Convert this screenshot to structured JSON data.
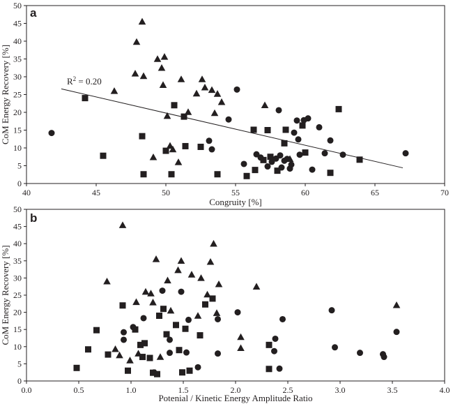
{
  "chart_data": [
    {
      "type": "scatter",
      "panel_label": "a",
      "xlabel": "Congruity [%]",
      "ylabel": "CoM Energy Recovery [%]",
      "xlim": [
        40,
        70
      ],
      "ylim": [
        0,
        50
      ],
      "x_ticks": [
        "40",
        "45",
        "50",
        "55",
        "60",
        "65",
        "70"
      ],
      "y_ticks": [
        "0",
        "5",
        "10",
        "15",
        "20",
        "25",
        "30",
        "35",
        "40",
        "45",
        "50"
      ],
      "grid": false,
      "annotation": {
        "text": "R",
        "sup": "2",
        "rest": " = 0.20"
      },
      "trendline": {
        "x": [
          42.5,
          67.0
        ],
        "y": [
          26.6,
          4.4
        ]
      },
      "series": [
        {
          "marker": "circle",
          "x": [
            41.8,
            53.1,
            53.3,
            54.5,
            55.1,
            55.6,
            56.5,
            56.8,
            57.3,
            57.6,
            57.9,
            58.1,
            58.2,
            58.3,
            58.5,
            58.7,
            58.9,
            59.0,
            59.2,
            59.4,
            59.5,
            59.6,
            59.9,
            60.2,
            60.5,
            61.0,
            61.4,
            61.8,
            62.7,
            67.2
          ],
          "y": [
            14.2,
            12.0,
            9.6,
            18.0,
            26.4,
            5.5,
            8.2,
            7.3,
            4.8,
            6.1,
            7.0,
            20.6,
            7.9,
            4.5,
            6.4,
            6.9,
            4.2,
            5.3,
            14.3,
            17.7,
            12.4,
            8.1,
            17.8,
            18.3,
            3.9,
            15.8,
            8.5,
            12.1,
            8.1,
            8.5
          ]
        },
        {
          "marker": "square",
          "x": [
            44.2,
            45.5,
            48.3,
            48.4,
            50.0,
            50.4,
            50.6,
            51.3,
            51.4,
            52.5,
            53.7,
            55.8,
            56.3,
            56.4,
            57.0,
            57.3,
            57.5,
            58.0,
            58.5,
            58.6,
            59.8,
            60.0,
            61.8,
            62.4,
            63.9
          ],
          "y": [
            24.0,
            7.8,
            13.3,
            2.6,
            9.2,
            2.6,
            22.0,
            18.8,
            10.5,
            10.3,
            2.6,
            2.1,
            15.1,
            3.8,
            6.6,
            15.0,
            7.5,
            3.6,
            11.3,
            15.1,
            16.3,
            8.7,
            3.0,
            20.9,
            6.7
          ]
        },
        {
          "marker": "triangle",
          "x": [
            46.3,
            47.8,
            47.9,
            48.3,
            48.4,
            49.1,
            49.4,
            49.7,
            49.8,
            49.9,
            50.1,
            50.3,
            50.5,
            50.9,
            51.1,
            51.6,
            52.2,
            52.6,
            52.8,
            53.3,
            53.5,
            53.7,
            54.0,
            57.1,
            58.9
          ],
          "y": [
            26.0,
            30.9,
            39.8,
            45.5,
            30.2,
            7.4,
            35.0,
            32.5,
            27.7,
            35.6,
            19.0,
            10.6,
            9.6,
            6.0,
            29.3,
            20.1,
            25.3,
            29.3,
            27.0,
            26.3,
            19.8,
            25.2,
            22.9,
            22.0,
            6.9
          ]
        }
      ]
    },
    {
      "type": "scatter",
      "panel_label": "b",
      "xlabel": "Potenial / Kinetic Energy Amplitude Ratio",
      "ylabel": "CoM Energy Recovery [%]",
      "xlim": [
        0,
        4
      ],
      "ylim": [
        0,
        50
      ],
      "x_ticks": [
        "0.0",
        "0.5",
        "1.0",
        "1.5",
        "2.0",
        "2.5",
        "3.0",
        "3.5",
        "4.0"
      ],
      "y_ticks": [
        "0",
        "5",
        "10",
        "15",
        "20",
        "25",
        "30",
        "35",
        "40",
        "45",
        "50"
      ],
      "grid": false,
      "series": [
        {
          "marker": "circle",
          "x": [
            0.93,
            0.93,
            1.02,
            1.12,
            1.22,
            1.3,
            1.37,
            1.37,
            1.48,
            1.53,
            1.55,
            1.64,
            1.83,
            1.83,
            2.02,
            2.37,
            2.38,
            2.42,
            2.45,
            2.92,
            2.95,
            3.19,
            3.41,
            3.42,
            3.54
          ],
          "y": [
            14.2,
            12.0,
            15.7,
            18.3,
            2.5,
            26.3,
            12.0,
            8.2,
            26.0,
            8.3,
            17.8,
            4.0,
            18.0,
            8.0,
            20.0,
            8.7,
            12.3,
            3.6,
            18.0,
            20.6,
            9.8,
            8.2,
            7.8,
            7.0,
            14.3
          ]
        },
        {
          "marker": "square",
          "x": [
            0.48,
            0.59,
            0.67,
            0.78,
            0.92,
            0.97,
            1.04,
            1.09,
            1.11,
            1.13,
            1.18,
            1.21,
            1.25,
            1.27,
            1.31,
            1.34,
            1.43,
            1.46,
            1.49,
            1.52,
            1.56,
            1.66,
            1.71,
            1.78,
            2.32,
            2.32
          ],
          "y": [
            3.8,
            9.2,
            14.8,
            7.7,
            22.0,
            3.0,
            15.0,
            10.5,
            7.0,
            11.0,
            6.7,
            2.4,
            2.0,
            19.0,
            21.0,
            13.6,
            16.3,
            9.0,
            2.5,
            15.2,
            3.0,
            13.3,
            22.3,
            24.0,
            10.5,
            3.5
          ]
        },
        {
          "marker": "triangle",
          "x": [
            0.77,
            0.85,
            0.89,
            0.92,
            0.99,
            1.05,
            1.07,
            1.14,
            1.19,
            1.21,
            1.24,
            1.28,
            1.35,
            1.38,
            1.45,
            1.48,
            1.58,
            1.64,
            1.67,
            1.73,
            1.76,
            1.79,
            1.82,
            1.84,
            2.05,
            2.05,
            2.2,
            3.54
          ],
          "y": [
            29.0,
            9.3,
            7.5,
            45.4,
            6.0,
            23.0,
            8.0,
            26.0,
            25.5,
            22.9,
            35.5,
            7.0,
            29.3,
            20.5,
            32.3,
            35.0,
            31.0,
            19.0,
            30.0,
            25.2,
            34.7,
            40.0,
            19.8,
            28.2,
            12.8,
            9.6,
            27.5,
            22.1
          ]
        }
      ]
    }
  ]
}
